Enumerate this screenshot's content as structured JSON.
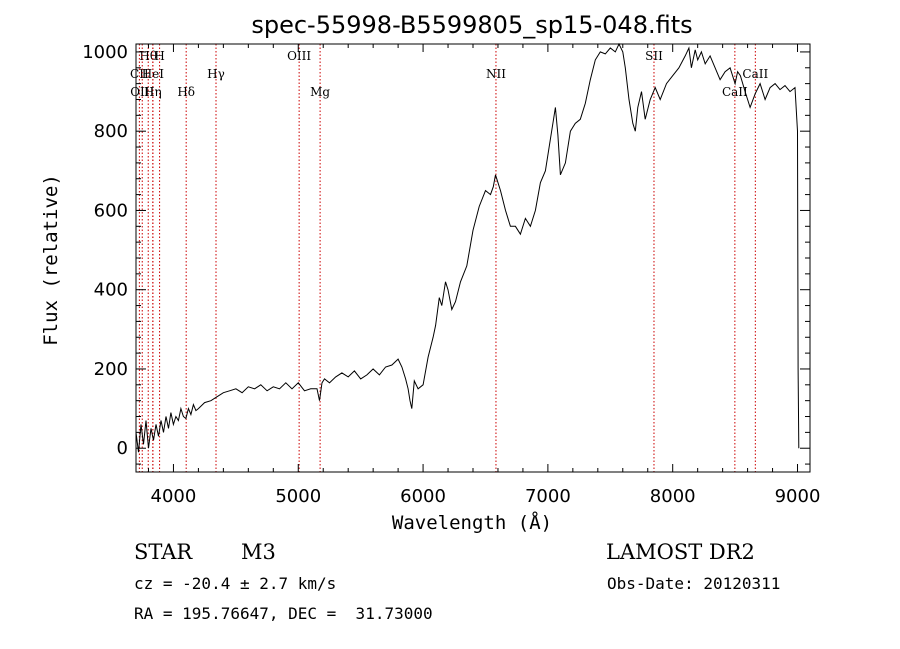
{
  "chart_data": {
    "type": "line",
    "title": "spec-55998-B5599805_sp15-048.fits",
    "xlabel": "Wavelength (Å)",
    "ylabel": "Flux (relative)",
    "xlim": [
      3700,
      9100
    ],
    "ylim": [
      -60,
      1020
    ],
    "xticks": [
      4000,
      5000,
      6000,
      7000,
      8000,
      9000
    ],
    "yticks": [
      0,
      200,
      400,
      600,
      800,
      1000
    ],
    "grid": false,
    "series": [
      {
        "x": [
          3700,
          3720,
          3740,
          3760,
          3780,
          3800,
          3820,
          3840,
          3860,
          3880,
          3900,
          3920,
          3940,
          3960,
          3980,
          4000,
          4020,
          4040,
          4060,
          4080,
          4100,
          4120,
          4140,
          4160,
          4180,
          4200,
          4250,
          4300,
          4350,
          4400,
          4450,
          4500,
          4550,
          4600,
          4650,
          4700,
          4750,
          4800,
          4850,
          4900,
          4950,
          5000,
          5050,
          5100,
          5150,
          5170,
          5190,
          5210,
          5250,
          5300,
          5350,
          5400,
          5450,
          5500,
          5550,
          5600,
          5650,
          5700,
          5750,
          5800,
          5830,
          5860,
          5880,
          5895,
          5910,
          5930,
          5960,
          6000,
          6040,
          6080,
          6100,
          6130,
          6150,
          6180,
          6200,
          6230,
          6260,
          6300,
          6350,
          6400,
          6450,
          6500,
          6540,
          6563,
          6580,
          6620,
          6660,
          6700,
          6740,
          6780,
          6820,
          6860,
          6900,
          6940,
          6980,
          7020,
          7040,
          7060,
          7080,
          7100,
          7140,
          7180,
          7220,
          7260,
          7300,
          7340,
          7380,
          7420,
          7460,
          7500,
          7540,
          7570,
          7600,
          7620,
          7650,
          7680,
          7700,
          7720,
          7750,
          7780,
          7820,
          7860,
          7900,
          7950,
          8000,
          8050,
          8100,
          8130,
          8150,
          8180,
          8200,
          8230,
          8260,
          8300,
          8340,
          8380,
          8420,
          8460,
          8500,
          8520,
          8542,
          8580,
          8620,
          8662,
          8700,
          8740,
          8780,
          8820,
          8860,
          8900,
          8940,
          8980,
          9000,
          9005,
          9010
        ],
        "y": [
          40,
          -10,
          60,
          10,
          70,
          0,
          50,
          20,
          60,
          30,
          70,
          40,
          80,
          50,
          90,
          60,
          80,
          70,
          100,
          80,
          75,
          100,
          85,
          110,
          95,
          100,
          115,
          120,
          130,
          140,
          145,
          150,
          140,
          155,
          150,
          160,
          145,
          155,
          150,
          165,
          150,
          165,
          145,
          150,
          150,
          120,
          165,
          175,
          165,
          180,
          190,
          180,
          195,
          175,
          185,
          200,
          185,
          205,
          210,
          225,
          205,
          175,
          150,
          120,
          100,
          170,
          150,
          160,
          230,
          280,
          310,
          380,
          360,
          420,
          400,
          350,
          370,
          420,
          460,
          550,
          610,
          650,
          640,
          660,
          690,
          650,
          600,
          560,
          560,
          540,
          580,
          560,
          600,
          670,
          700,
          780,
          820,
          860,
          790,
          690,
          720,
          800,
          820,
          830,
          870,
          930,
          980,
          1000,
          995,
          1010,
          1000,
          1020,
          1000,
          960,
          880,
          820,
          800,
          860,
          900,
          830,
          880,
          910,
          880,
          920,
          940,
          960,
          990,
          1010,
          960,
          1005,
          980,
          1000,
          970,
          990,
          960,
          930,
          950,
          960,
          920,
          950,
          940,
          900,
          860,
          895,
          920,
          880,
          910,
          920,
          905,
          915,
          900,
          910,
          800,
          200,
          0
        ]
      }
    ],
    "line_markers": [
      {
        "label": "Hθ",
        "x": 3798,
        "row": 1
      },
      {
        "label": "H",
        "x": 3889,
        "row": 1
      },
      {
        "label": "CII",
        "x": 3727,
        "row": 2
      },
      {
        "label": "HeI",
        "x": 3835,
        "row": 2
      },
      {
        "label": "OIII",
        "x": 3750,
        "row": 3
      },
      {
        "label": "Hη",
        "x": 3835,
        "row": 3
      },
      {
        "label": "Hδ",
        "x": 4102,
        "row": 3
      },
      {
        "label": "Hγ",
        "x": 4341,
        "row": 2
      },
      {
        "label": "OIII",
        "x": 5007,
        "row": 1
      },
      {
        "label": "Mg",
        "x": 5175,
        "row": 3
      },
      {
        "label": "NII",
        "x": 6584,
        "row": 2
      },
      {
        "label": "SII",
        "x": 7850,
        "row": 1
      },
      {
        "label": "CaII",
        "x": 8498,
        "row": 3
      },
      {
        "label": "CaII",
        "x": 8662,
        "row": 2
      }
    ]
  },
  "info": {
    "class_label": "STAR",
    "subclass": "M3",
    "survey": "LAMOST DR2",
    "cz": "cz = -20.4 ± 2.7 km/s",
    "obs_date": "Obs-Date: 20120311",
    "coords": "RA = 195.76647, DEC =  31.73000"
  },
  "colors": {
    "spectrum": "#000000",
    "line_marker": "#cc0000"
  }
}
